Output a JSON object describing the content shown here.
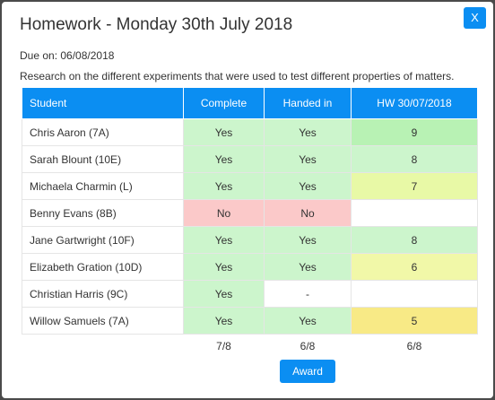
{
  "modal": {
    "title": "Homework - Monday 30th July 2018",
    "close_label": "X",
    "due": "Due on: 06/08/2018",
    "description": "Research on the different experiments that were used to test different properties of matters."
  },
  "table": {
    "headers": [
      "Student",
      "Complete",
      "Handed in",
      "HW 30/07/2018"
    ],
    "rows": [
      {
        "student": "Chris Aaron (7A)",
        "complete": "Yes",
        "handed_in": "Yes",
        "grade": "9"
      },
      {
        "student": "Sarah Blount (10E)",
        "complete": "Yes",
        "handed_in": "Yes",
        "grade": "8"
      },
      {
        "student": "Michaela Charmin (L)",
        "complete": "Yes",
        "handed_in": "Yes",
        "grade": "7"
      },
      {
        "student": "Benny Evans (8B)",
        "complete": "No",
        "handed_in": "No",
        "grade": ""
      },
      {
        "student": "Jane Gartwright (10F)",
        "complete": "Yes",
        "handed_in": "Yes",
        "grade": "8"
      },
      {
        "student": "Elizabeth Gration (10D)",
        "complete": "Yes",
        "handed_in": "Yes",
        "grade": "6"
      },
      {
        "student": "Christian Harris (9C)",
        "complete": "Yes",
        "handed_in": "-",
        "grade": ""
      },
      {
        "student": "Willow Samuels (7A)",
        "complete": "Yes",
        "handed_in": "Yes",
        "grade": "5"
      }
    ],
    "summary": {
      "complete": "7/8",
      "handed_in": "6/8",
      "grade": "6/8"
    },
    "award_label": "Award"
  },
  "colors": {
    "accent": "#0b8ef2",
    "yes": "#ccf5cc",
    "no": "#fbc9c9",
    "grade_9": "#b8f2b4",
    "grade_8": "#ccf5cc",
    "grade_7": "#e8f9a6",
    "grade_6": "#f1f8a8",
    "grade_5": "#f8ea86"
  }
}
